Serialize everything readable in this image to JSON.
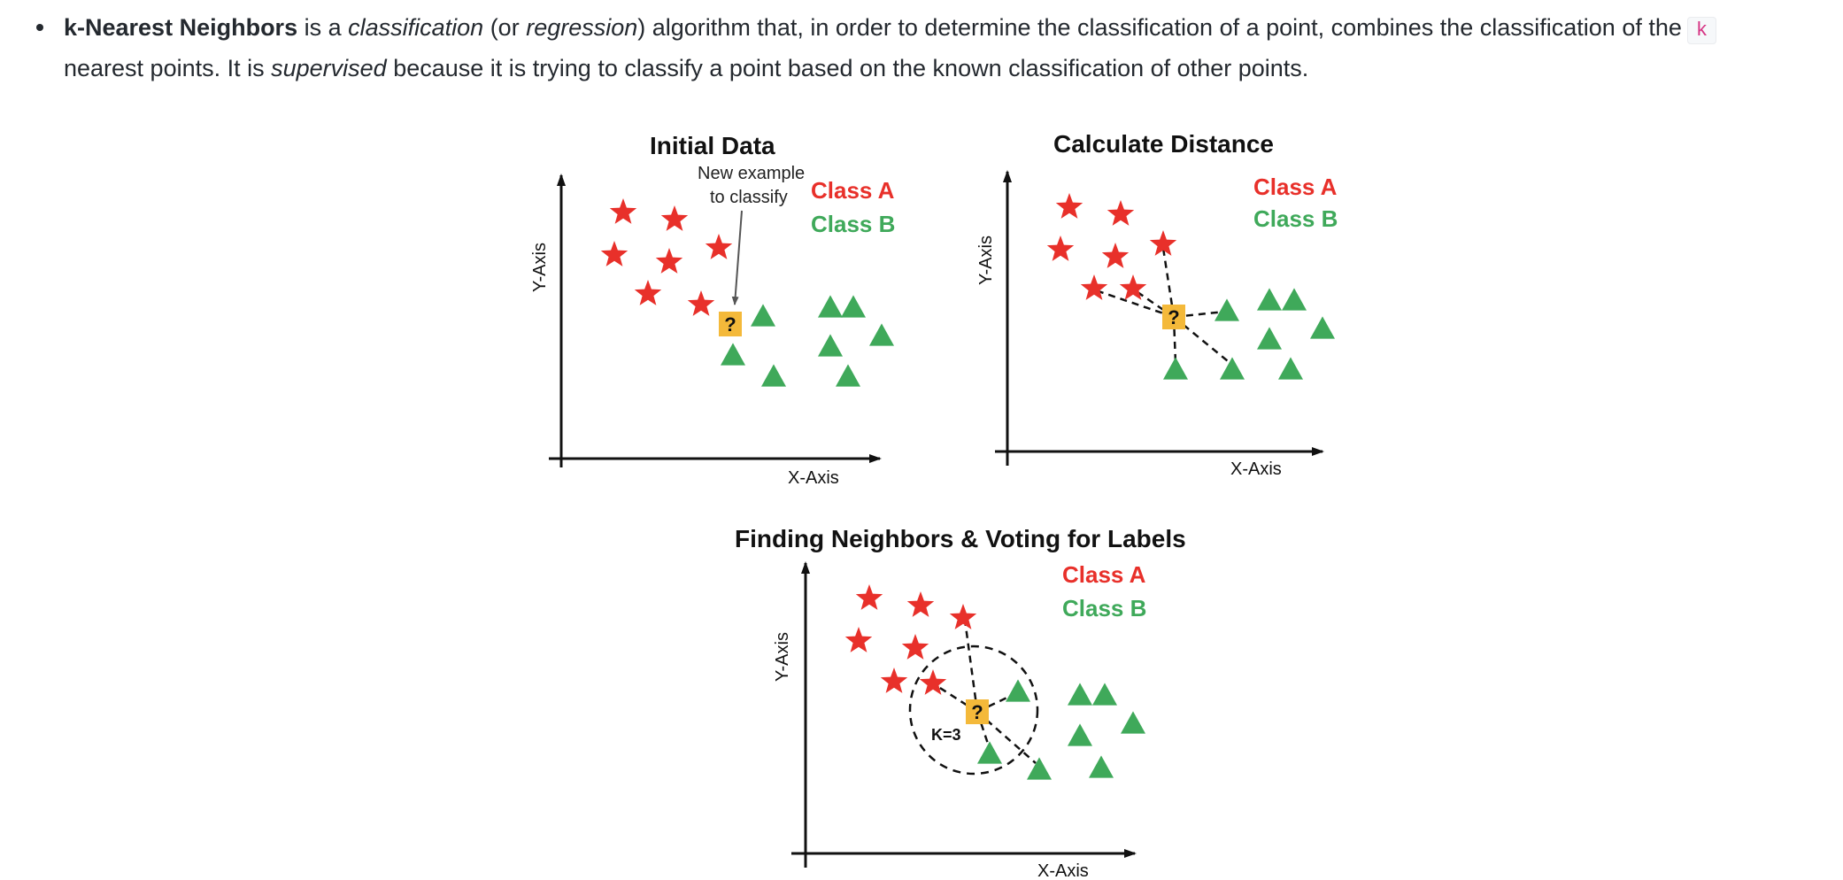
{
  "paragraph": {
    "term": "k-Nearest Neighbors",
    "t1": " is a ",
    "classification": "classification",
    "t2": " (or ",
    "regression": "regression",
    "t3": ") algorithm that, in order to determine the classification of a point, combines the classification of the",
    "code_k": "k",
    "t4": "nearest points. It is ",
    "supervised": "supervised",
    "t5": " because it is trying to classify a point based on the known classification of other points."
  },
  "figure": {
    "colors": {
      "class_a": "#e8302a",
      "class_b": "#3fa95a",
      "query": "#f4b93a",
      "axis": "#111111"
    },
    "legend": {
      "class_a": "Class A",
      "class_b": "Class B"
    },
    "panels": {
      "initial": {
        "title": "Initial Data",
        "xlabel": "X-Axis",
        "ylabel": "Y-Axis",
        "note_line1": "New example",
        "note_line2": "to classify",
        "query_symbol": "?"
      },
      "distance": {
        "title": "Calculate Distance",
        "xlabel": "X-Axis",
        "ylabel": "Y-Axis",
        "query_symbol": "?"
      },
      "voting": {
        "title": "Finding Neighbors & Voting for Labels",
        "xlabel": "X-Axis",
        "ylabel": "Y-Axis",
        "query_symbol": "?",
        "k_label": "K=3"
      }
    }
  }
}
